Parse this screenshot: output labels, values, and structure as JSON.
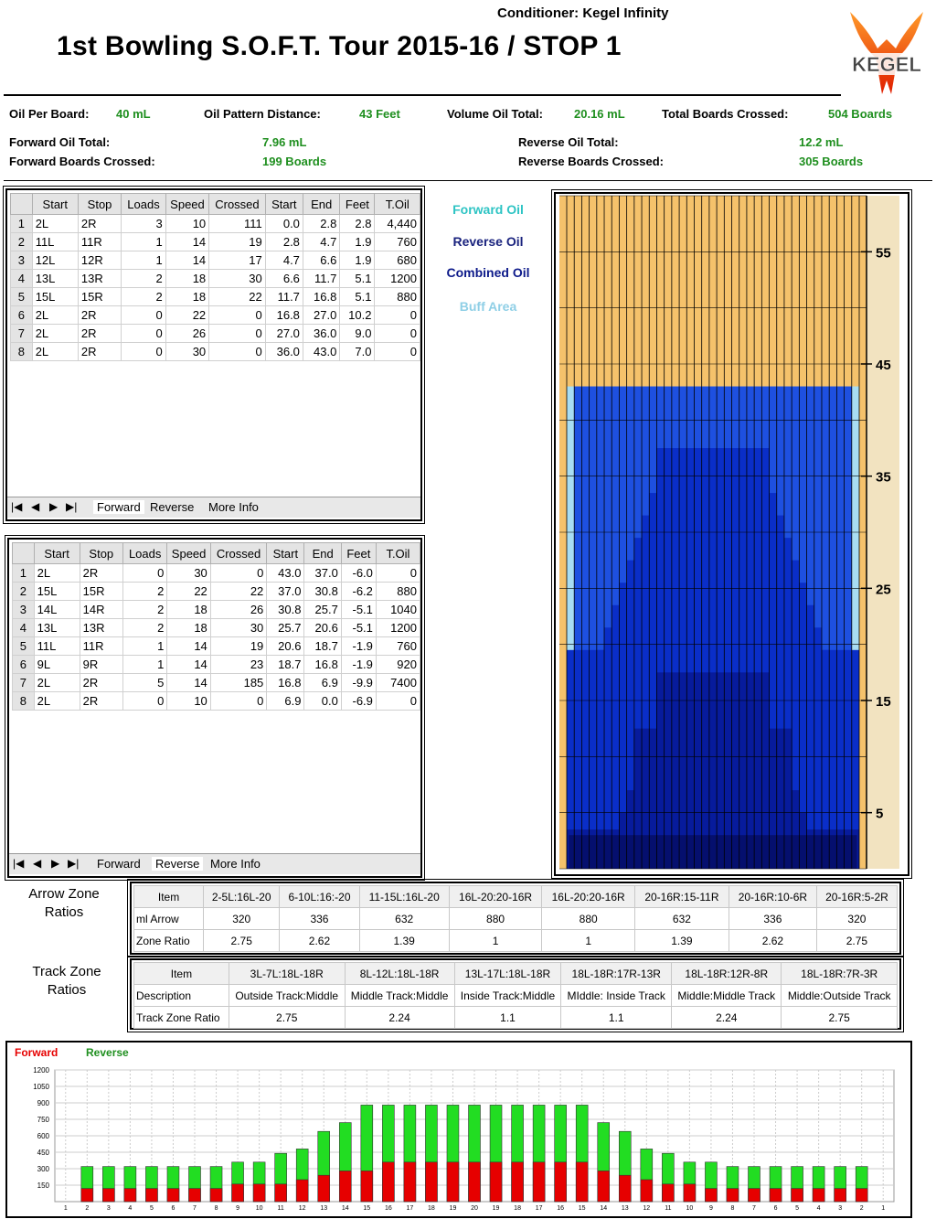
{
  "header": {
    "conditioner": "Conditioner: Kegel Infinity",
    "title": "1st Bowling S.O.F.T. Tour 2015-16 / STOP 1",
    "logo_text": "KEGEL"
  },
  "summary": {
    "oil_per_board_label": "Oil Per Board:",
    "oil_per_board": "40 mL",
    "pattern_distance_label": "Oil Pattern Distance:",
    "pattern_distance": "43 Feet",
    "volume_total_label": "Volume Oil Total:",
    "volume_total": "20.16 mL",
    "boards_crossed_label": "Total Boards Crossed:",
    "boards_crossed": "504 Boards",
    "forward_oil_label": "Forward Oil Total:",
    "forward_oil": "7.96 mL",
    "forward_boards_label": "Forward Boards Crossed:",
    "forward_boards": "199 Boards",
    "reverse_oil_label": "Reverse Oil Total:",
    "reverse_oil": "12.2 mL",
    "reverse_boards_label": "Reverse Boards Crossed:",
    "reverse_boards": "305 Boards"
  },
  "columns": [
    "Start",
    "Stop",
    "Loads",
    "Speed",
    "Crossed",
    "Start",
    "End",
    "Feet",
    "T.Oil"
  ],
  "forward_rows": [
    [
      "1",
      "2L",
      "2R",
      "3",
      "10",
      "111",
      "0.0",
      "2.8",
      "2.8",
      "4,440"
    ],
    [
      "2",
      "11L",
      "11R",
      "1",
      "14",
      "19",
      "2.8",
      "4.7",
      "1.9",
      "760"
    ],
    [
      "3",
      "12L",
      "12R",
      "1",
      "14",
      "17",
      "4.7",
      "6.6",
      "1.9",
      "680"
    ],
    [
      "4",
      "13L",
      "13R",
      "2",
      "18",
      "30",
      "6.6",
      "11.7",
      "5.1",
      "1200"
    ],
    [
      "5",
      "15L",
      "15R",
      "2",
      "18",
      "22",
      "11.7",
      "16.8",
      "5.1",
      "880"
    ],
    [
      "6",
      "2L",
      "2R",
      "0",
      "22",
      "0",
      "16.8",
      "27.0",
      "10.2",
      "0"
    ],
    [
      "7",
      "2L",
      "2R",
      "0",
      "26",
      "0",
      "27.0",
      "36.0",
      "9.0",
      "0"
    ],
    [
      "8",
      "2L",
      "2R",
      "0",
      "30",
      "0",
      "36.0",
      "43.0",
      "7.0",
      "0"
    ]
  ],
  "reverse_rows": [
    [
      "1",
      "2L",
      "2R",
      "0",
      "30",
      "0",
      "43.0",
      "37.0",
      "-6.0",
      "0"
    ],
    [
      "2",
      "15L",
      "15R",
      "2",
      "22",
      "22",
      "37.0",
      "30.8",
      "-6.2",
      "880"
    ],
    [
      "3",
      "14L",
      "14R",
      "2",
      "18",
      "26",
      "30.8",
      "25.7",
      "-5.1",
      "1040"
    ],
    [
      "4",
      "13L",
      "13R",
      "2",
      "18",
      "30",
      "25.7",
      "20.6",
      "-5.1",
      "1200"
    ],
    [
      "5",
      "11L",
      "11R",
      "1",
      "14",
      "19",
      "20.6",
      "18.7",
      "-1.9",
      "760"
    ],
    [
      "6",
      "9L",
      "9R",
      "1",
      "14",
      "23",
      "18.7",
      "16.8",
      "-1.9",
      "920"
    ],
    [
      "7",
      "2L",
      "2R",
      "5",
      "14",
      "185",
      "16.8",
      "6.9",
      "-9.9",
      "7400"
    ],
    [
      "8",
      "2L",
      "2R",
      "0",
      "10",
      "0",
      "6.9",
      "0.0",
      "-6.9",
      "0"
    ]
  ],
  "tabs": {
    "forward": "Forward",
    "reverse": "Reverse",
    "more": "More Info",
    "nav": [
      "|◀",
      "◀",
      "▶",
      "▶|"
    ]
  },
  "legend": {
    "forward": "Forward Oil",
    "reverse": "Reverse Oil",
    "combined": "Combined Oil",
    "buff": "Buff Area",
    "colors": {
      "forward": "#2ec4c4",
      "reverse": "#1a237e",
      "combined": "#0d1a8a",
      "buff": "#8fcfe6"
    }
  },
  "arrow_zone": {
    "title": [
      "Arrow Zone",
      "Ratios"
    ],
    "headers": [
      "Item",
      "2-5L:16L-20",
      "6-10L:16:-20",
      "11-15L:16L-20",
      "16L-20:20-16R",
      "16L-20:20-16R",
      "20-16R:15-11R",
      "20-16R:10-6R",
      "20-16R:5-2R"
    ],
    "rows": [
      [
        "ml Arrow",
        "320",
        "336",
        "632",
        "880",
        "880",
        "632",
        "336",
        "320"
      ],
      [
        "Zone Ratio",
        "2.75",
        "2.62",
        "1.39",
        "1",
        "1",
        "1.39",
        "2.62",
        "2.75"
      ]
    ]
  },
  "track_zone": {
    "title": [
      "Track Zone",
      "Ratios"
    ],
    "headers": [
      "Item",
      "3L-7L:18L-18R",
      "8L-12L:18L-18R",
      "13L-17L:18L-18R",
      "18L-18R:17R-13R",
      "18L-18R:12R-8R",
      "18L-18R:7R-3R"
    ],
    "rows": [
      [
        "Description",
        "Outside Track:Middle",
        "Middle Track:Middle",
        "Inside Track:Middle",
        "MIddle: Inside Track",
        "Middle:Middle Track",
        "Middle:Outside Track"
      ],
      [
        "Track Zone Ratio",
        "2.75",
        "2.24",
        "1.1",
        "1.1",
        "2.24",
        "2.75"
      ]
    ]
  },
  "chart_data": [
    {
      "type": "heatmap",
      "title": "",
      "y_ticks": [
        5,
        15,
        25,
        35,
        45,
        55
      ],
      "ylim": [
        0,
        60
      ],
      "pattern_distance_ft": 43,
      "boards": 39,
      "colors": {
        "background": "#f5c26b",
        "buff": "#a8ddf3",
        "light": "#1e50e0",
        "mid": "#0a2ec8",
        "dark": "#071b9c",
        "darkest": "#050f6e"
      }
    },
    {
      "type": "bar",
      "legend": [
        "Forward",
        "Reverse"
      ],
      "series_colors": {
        "Forward": "#e60000",
        "Reverse": "#22dd22"
      },
      "y_ticks": [
        150,
        300,
        450,
        600,
        750,
        900,
        1050,
        1200
      ],
      "ylim": [
        0,
        1200
      ],
      "categories": [
        "1",
        "2",
        "3",
        "4",
        "5",
        "6",
        "7",
        "8",
        "9",
        "10",
        "11",
        "12",
        "13",
        "14",
        "15",
        "16",
        "17",
        "18",
        "19",
        "20",
        "19",
        "18",
        "17",
        "16",
        "15",
        "14",
        "13",
        "12",
        "11",
        "10",
        "9",
        "8",
        "7",
        "6",
        "5",
        "4",
        "3",
        "2",
        "1"
      ],
      "series": [
        {
          "name": "Forward",
          "values": [
            0,
            120,
            120,
            120,
            120,
            120,
            120,
            120,
            160,
            160,
            160,
            200,
            240,
            280,
            280,
            360,
            360,
            360,
            360,
            360,
            360,
            360,
            360,
            360,
            360,
            280,
            240,
            200,
            160,
            160,
            120,
            120,
            120,
            120,
            120,
            120,
            120,
            120,
            0
          ]
        },
        {
          "name": "Reverse",
          "values": [
            0,
            320,
            320,
            320,
            320,
            320,
            320,
            320,
            360,
            360,
            440,
            480,
            640,
            720,
            880,
            880,
            880,
            880,
            880,
            880,
            880,
            880,
            880,
            880,
            880,
            720,
            640,
            480,
            440,
            360,
            360,
            320,
            320,
            320,
            320,
            320,
            320,
            320,
            0
          ]
        }
      ]
    }
  ]
}
